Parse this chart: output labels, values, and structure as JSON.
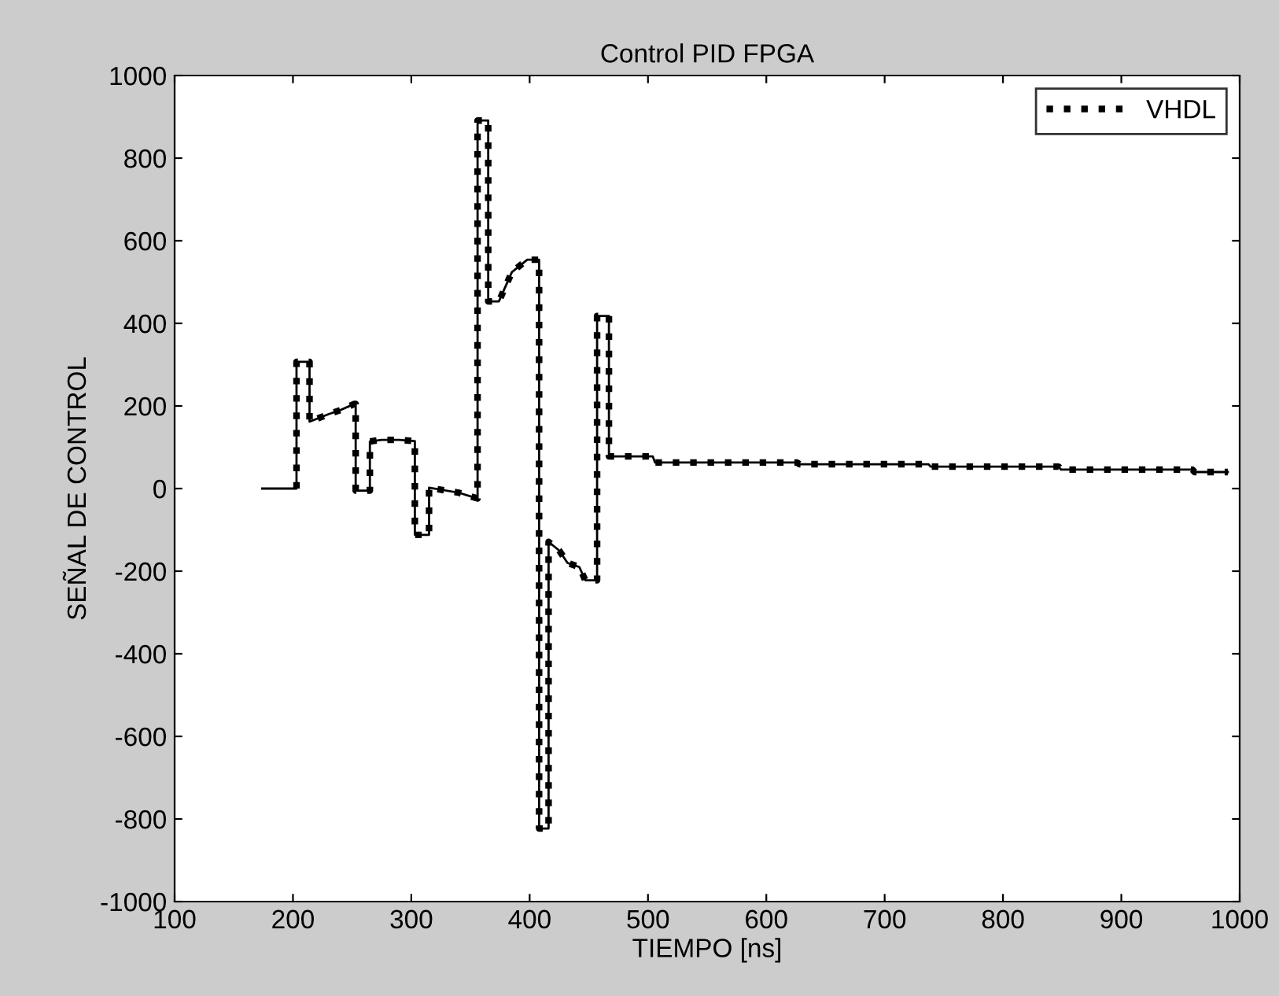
{
  "chart_data": {
    "type": "line",
    "title": "Control PID FPGA",
    "xlabel": "TIEMPO [ns]",
    "ylabel": "SEÑAL DE CONTROL",
    "xlim": [
      100,
      1000
    ],
    "xticks": [
      100,
      200,
      300,
      400,
      500,
      600,
      700,
      800,
      900,
      1000
    ],
    "ylim": [
      -1000,
      1000
    ],
    "yticks": [
      -1000,
      -800,
      -600,
      -400,
      -200,
      0,
      200,
      400,
      600,
      800,
      1000
    ],
    "grid": false,
    "legend": "top right",
    "series": [
      {
        "color": "#000000",
        "line_style": "solid",
        "x": [
          174,
          203,
          203,
          214,
          214,
          230,
          240,
          252,
          253,
          253,
          265,
          265,
          275,
          290,
          302,
          303,
          303,
          315,
          315,
          340,
          356,
          356,
          365,
          365,
          374,
          385,
          398,
          408,
          408,
          416,
          416,
          425,
          432,
          442,
          447,
          457,
          457,
          467,
          467,
          504,
          506,
          626,
          628,
          737,
          739,
          847,
          849,
          960,
          962,
          990
        ],
        "values": [
          0,
          0,
          307,
          307,
          162,
          180,
          190,
          205,
          205,
          -5,
          -5,
          114,
          118,
          118,
          115,
          115,
          -112,
          -112,
          2,
          -10,
          -24,
          891,
          891,
          453,
          453,
          524,
          554,
          554,
          -823,
          -823,
          -129,
          -150,
          -180,
          -190,
          -222,
          -222,
          418,
          418,
          78,
          78,
          63,
          63,
          59,
          59,
          53,
          53,
          46,
          46,
          40,
          40
        ]
      },
      {
        "name": "VHDL",
        "color": "#000000",
        "line_style": "dotted",
        "x": [
          203,
          203,
          214,
          214,
          230,
          240,
          252,
          253,
          253,
          265,
          265,
          275,
          290,
          302,
          303,
          303,
          315,
          315,
          340,
          356,
          356,
          365,
          365,
          374,
          385,
          398,
          408,
          408,
          416,
          416,
          425,
          432,
          442,
          447,
          457,
          457,
          467,
          467,
          504,
          506,
          626,
          628,
          737,
          739,
          847,
          849,
          960,
          962,
          990
        ],
        "values": [
          0,
          307,
          307,
          162,
          180,
          190,
          205,
          205,
          -5,
          -5,
          114,
          118,
          118,
          115,
          115,
          -112,
          -112,
          2,
          -10,
          -24,
          891,
          891,
          453,
          453,
          524,
          554,
          554,
          -823,
          -823,
          -129,
          -150,
          -180,
          -190,
          -222,
          -222,
          418,
          418,
          78,
          78,
          63,
          63,
          59,
          59,
          53,
          53,
          46,
          46,
          40,
          40
        ]
      }
    ]
  }
}
